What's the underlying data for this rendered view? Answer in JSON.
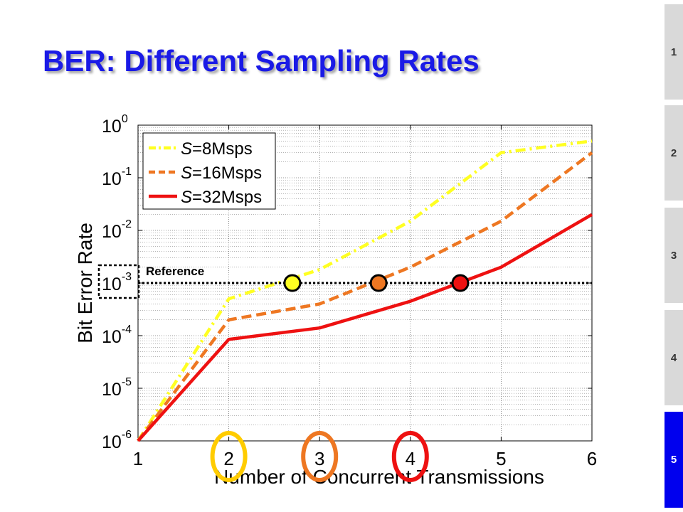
{
  "slide": {
    "title": "BER: Different Sampling Rates"
  },
  "nav": {
    "tabs": [
      {
        "label": "1",
        "active": false
      },
      {
        "label": "2",
        "active": false
      },
      {
        "label": "3",
        "active": false
      },
      {
        "label": "4",
        "active": false
      },
      {
        "label": "5",
        "active": true
      }
    ],
    "active_color": "#0000ee",
    "inactive_color": "#d9d9d9"
  },
  "chart_data": {
    "type": "line",
    "title": "",
    "xlabel": "Number of Concurrent Transmissions",
    "ylabel": "Bit Error Rate",
    "y_scale": "log",
    "xlim": [
      1,
      6
    ],
    "ylim": [
      1e-06,
      1
    ],
    "x_ticks": [
      1,
      2,
      3,
      4,
      5,
      6
    ],
    "y_ticks": [
      {
        "value": 1,
        "base": "10",
        "exp": "0"
      },
      {
        "value": 0.1,
        "base": "10",
        "exp": "-1"
      },
      {
        "value": 0.01,
        "base": "10",
        "exp": "-2"
      },
      {
        "value": 0.001,
        "base": "10",
        "exp": "-3"
      },
      {
        "value": 0.0001,
        "base": "10",
        "exp": "-4"
      },
      {
        "value": 1e-05,
        "base": "10",
        "exp": "-5"
      },
      {
        "value": 1e-06,
        "base": "10",
        "exp": "-6"
      }
    ],
    "grid": true,
    "legend_position": "top-left",
    "series": [
      {
        "name_pre": "S",
        "name_post": "=8Msps",
        "color": "#ffff22",
        "style": "dashdot",
        "x": [
          1,
          2,
          3,
          4,
          5,
          6
        ],
        "y": [
          1e-06,
          0.0005,
          0.0018,
          0.015,
          0.3,
          0.5
        ]
      },
      {
        "name_pre": "S",
        "name_post": "=16Msps",
        "color": "#ee7722",
        "style": "dashed",
        "x": [
          1,
          2,
          3,
          4,
          5,
          6
        ],
        "y": [
          1e-06,
          0.0002,
          0.0004,
          0.002,
          0.015,
          0.3
        ]
      },
      {
        "name_pre": "S",
        "name_post": "=32Msps",
        "color": "#ee1111",
        "style": "solid",
        "x": [
          1,
          2,
          3,
          4,
          5,
          6
        ],
        "y": [
          1e-06,
          8.5e-05,
          0.00014,
          0.00045,
          0.002,
          0.02
        ]
      }
    ],
    "reference": {
      "label": "Reference",
      "y": 0.001
    },
    "markers": [
      {
        "x": 2.7,
        "y": 0.001,
        "color": "#ffff22"
      },
      {
        "x": 3.65,
        "y": 0.001,
        "color": "#ee7722"
      },
      {
        "x": 4.55,
        "y": 0.001,
        "color": "#ee1111"
      }
    ],
    "highlight_rings": [
      {
        "x": 2,
        "color": "#ffcc00"
      },
      {
        "x": 3,
        "color": "#ee7722"
      },
      {
        "x": 4,
        "color": "#ee1111"
      }
    ]
  }
}
